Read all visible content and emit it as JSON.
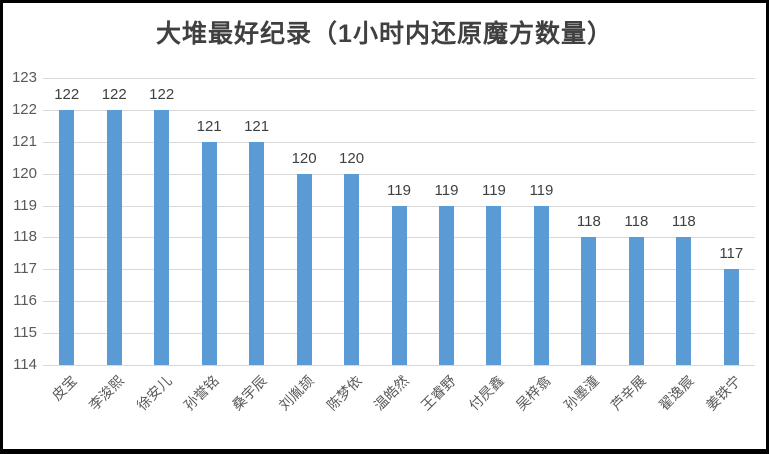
{
  "chart_data": {
    "type": "bar",
    "title": "大堆最好纪录（1小时内还原魔方数量）",
    "categories": [
      "皮宝",
      "李浚熙",
      "徐安儿",
      "孙誉铭",
      "桑宇辰",
      "刘胤颉",
      "陈梦依",
      "温皓然",
      "王睿野",
      "付昃鑫",
      "吴梓翕",
      "孙墨潼",
      "芦辛展",
      "翟逸宸",
      "姜铁宁"
    ],
    "values": [
      122,
      122,
      122,
      121,
      121,
      120,
      120,
      119,
      119,
      119,
      119,
      118,
      118,
      118,
      117
    ],
    "xlabel": "",
    "ylabel": "",
    "ylim": [
      114,
      123
    ],
    "yticks": [
      123,
      122,
      121,
      120,
      119,
      118,
      117,
      116,
      115,
      114
    ],
    "grid": true,
    "legend_position": "none",
    "bar_color": "#5b9bd5",
    "gridline_color": "#d9d9d9",
    "title_color": "#404040",
    "value_label_color": "#404040",
    "axis_tick_color": "#595959"
  }
}
